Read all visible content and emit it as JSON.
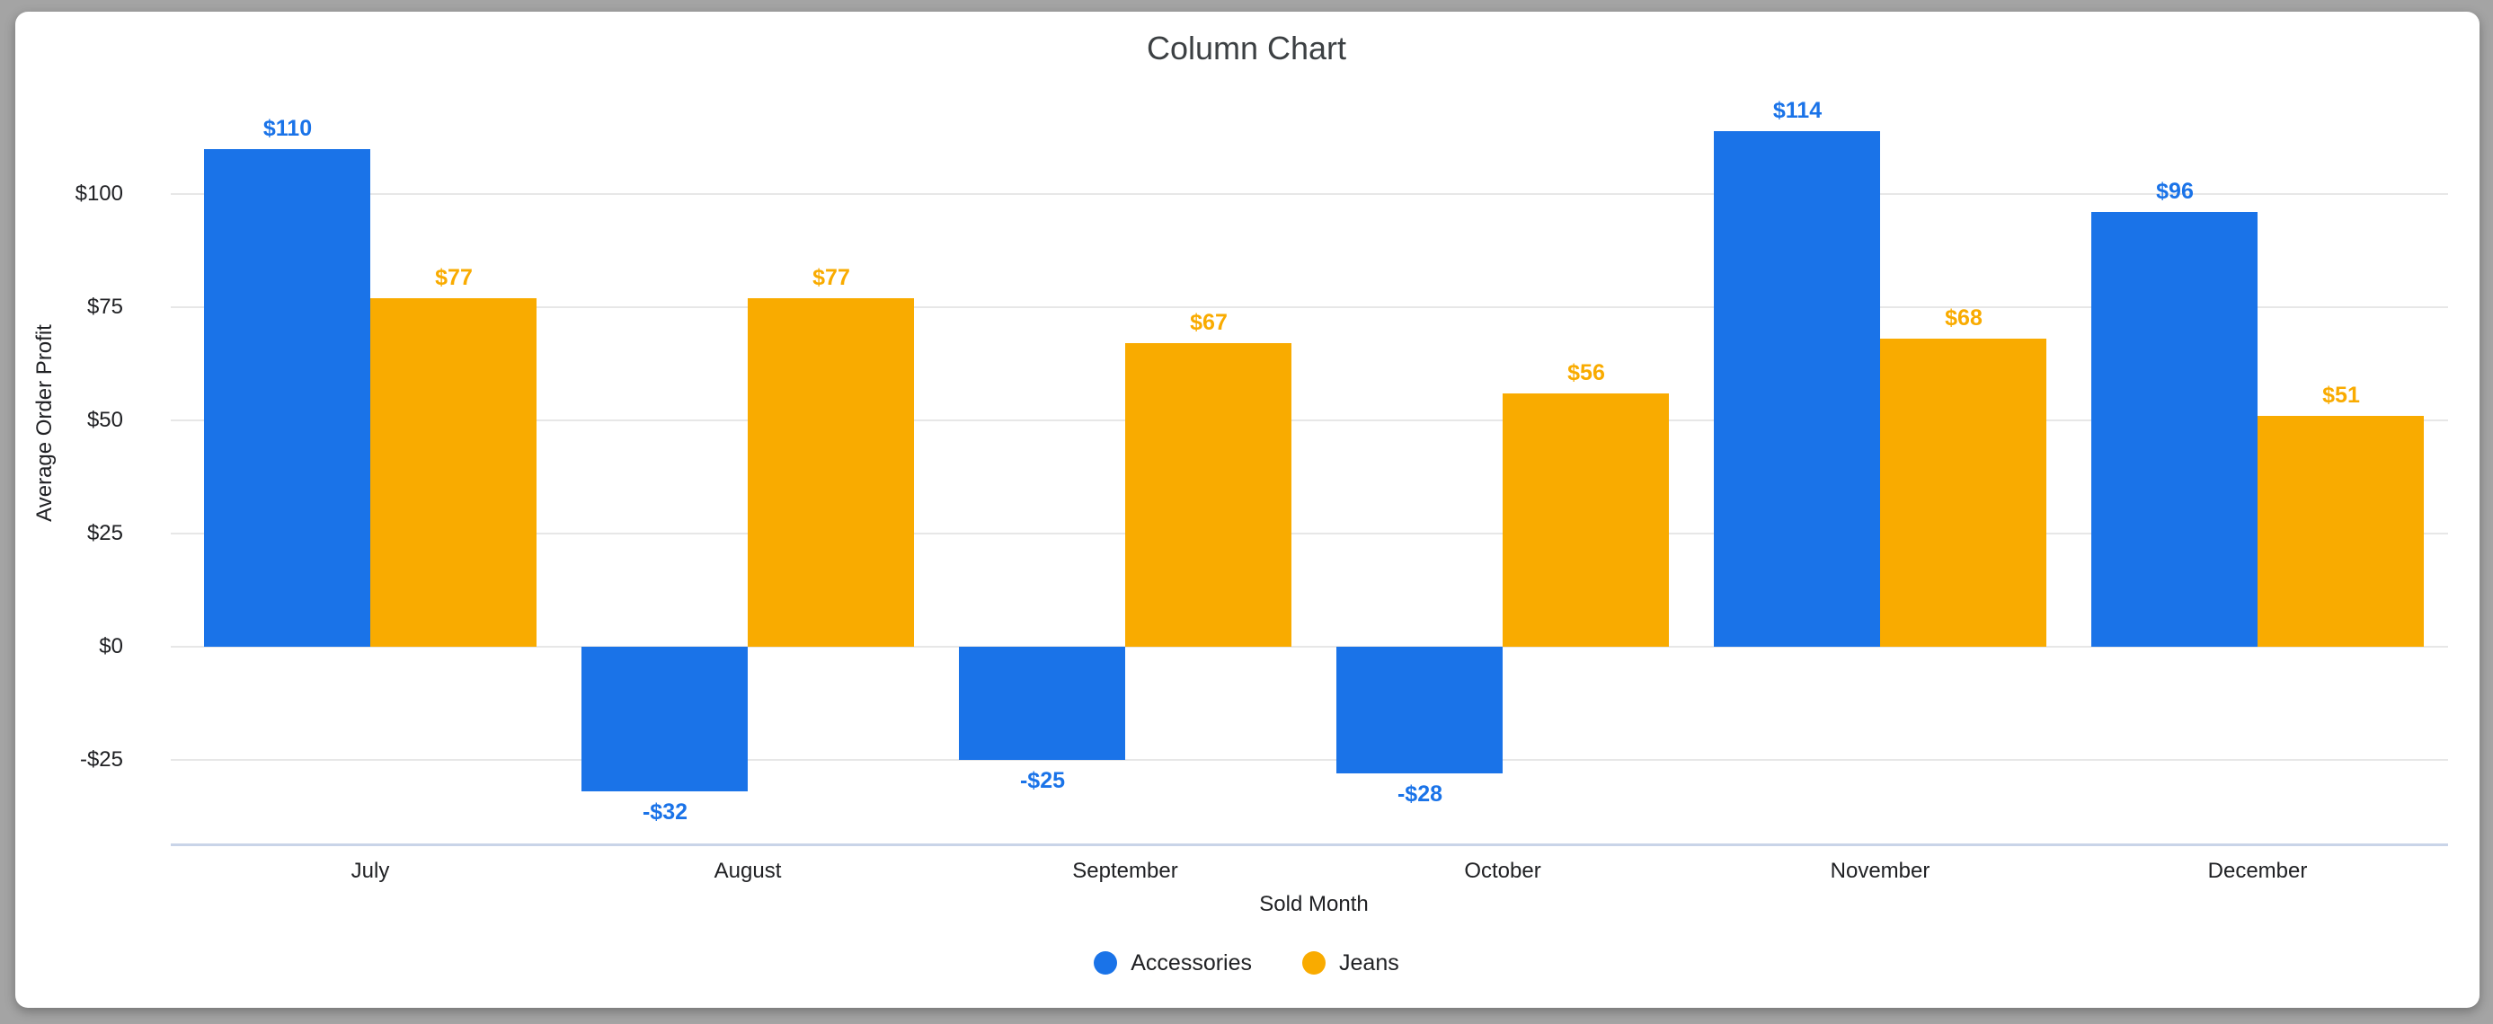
{
  "window": {
    "background_color": "#a4a4a4",
    "card_background_color": "#ffffff"
  },
  "chart_data": {
    "type": "bar",
    "title": "Column Chart",
    "xlabel": "Sold Month",
    "ylabel": "Average Order Profit",
    "categories": [
      "July",
      "August",
      "September",
      "October",
      "November",
      "December"
    ],
    "series": [
      {
        "name": "Accessories",
        "color": "#1a73e8",
        "values": [
          110,
          -32,
          -25,
          -28,
          114,
          96
        ],
        "data_labels": [
          "$110",
          "-$32",
          "-$25",
          "-$28",
          "$114",
          "$96"
        ]
      },
      {
        "name": "Jeans",
        "color": "#f9ab00",
        "values": [
          77,
          77,
          67,
          56,
          68,
          51
        ],
        "data_labels": [
          "$77",
          "$77",
          "$67",
          "$56",
          "$68",
          "$51"
        ]
      }
    ],
    "y_axis": {
      "ticks": [
        {
          "value": 100,
          "label": "$100"
        },
        {
          "value": 75,
          "label": "$75"
        },
        {
          "value": 50,
          "label": "$50"
        },
        {
          "value": 25,
          "label": "$25"
        },
        {
          "value": 0,
          "label": "$0"
        },
        {
          "value": -25,
          "label": "-$25"
        }
      ],
      "ylim": [
        -43.7,
        128
      ]
    },
    "grid": true,
    "legend_position": "bottom-center",
    "colors": {
      "gridline": "#e7e7e7",
      "axis_line": "#c9d4e8",
      "tick_text": "#202124",
      "title_text": "#3c4043"
    }
  }
}
